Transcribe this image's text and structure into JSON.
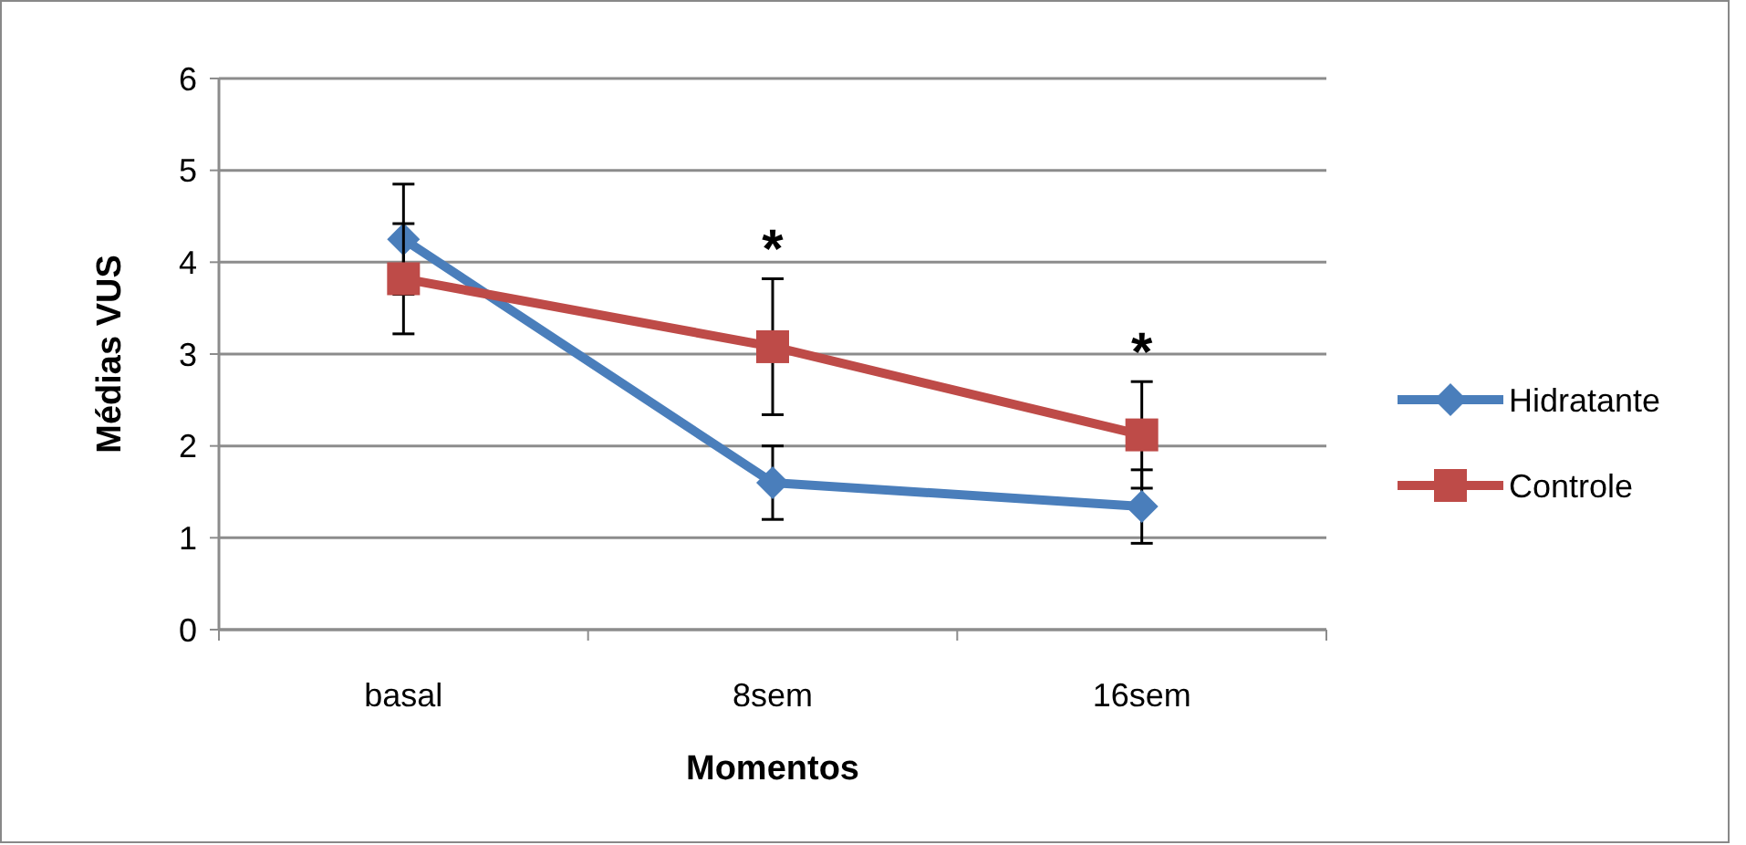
{
  "chart_data": {
    "type": "line",
    "xlabel": "Momentos",
    "ylabel": "Médias  VUS",
    "categories": [
      "basal",
      "8sem",
      "16sem"
    ],
    "series": [
      {
        "name": "Hidratante",
        "color": "#4a7ebb",
        "marker": "diamond",
        "values": [
          4.25,
          1.6,
          1.34
        ],
        "errors": [
          0.6,
          0.4,
          0.4
        ]
      },
      {
        "name": "Controle",
        "color": "#be4b48",
        "marker": "square",
        "values": [
          3.82,
          3.08,
          2.12
        ],
        "errors": [
          0.6,
          0.74,
          0.58
        ]
      }
    ],
    "ylim": [
      0,
      6
    ],
    "yticks": [
      0,
      1,
      2,
      3,
      4,
      5,
      6
    ],
    "grid": "y",
    "legend": "right",
    "annotations": [
      {
        "text": "*",
        "x": "8sem",
        "y": 3.82
      },
      {
        "text": "*",
        "x": "16sem",
        "y": 2.7
      }
    ]
  }
}
